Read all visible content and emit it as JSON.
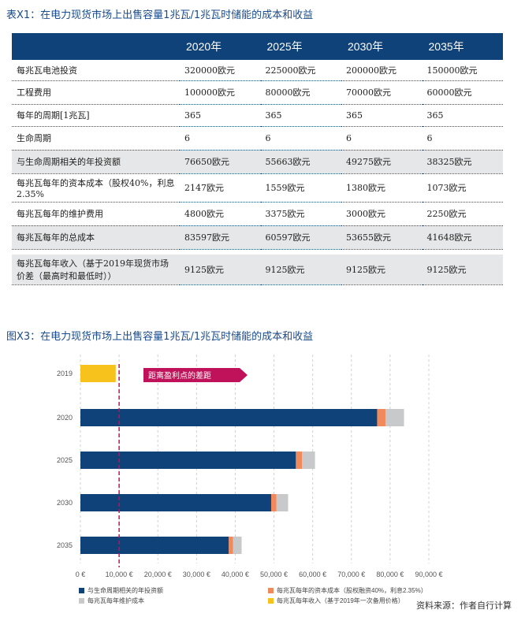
{
  "table": {
    "title": "表X1：在电力现货市场上出售容量1兆瓦/1兆瓦时储能的成本和收益",
    "headers": [
      "",
      "2020年",
      "2025年",
      "2030年",
      "2035年"
    ],
    "rows": [
      {
        "label": "每兆瓦电池投资",
        "values": [
          "320000欧元",
          "225000欧元",
          "200000欧元",
          "150000欧元"
        ],
        "shaded": false
      },
      {
        "label": "工程费用",
        "values": [
          "100000欧元",
          "80000欧元",
          "70000欧元",
          "60000欧元"
        ],
        "shaded": false
      },
      {
        "label": "每年的周期[1兆瓦]",
        "values": [
          "365",
          "365",
          "365",
          "365"
        ],
        "shaded": false
      },
      {
        "label": "生命周期",
        "values": [
          "6",
          "6",
          "6",
          "6"
        ],
        "shaded": false
      },
      {
        "label": "与生命周期相关的年投资额",
        "values": [
          "76650欧元",
          "55663欧元",
          "49275欧元",
          "38325欧元"
        ],
        "shaded": true
      },
      {
        "label": "每兆瓦每年的资本成本（股权40%，利息2.35%",
        "values": [
          "2147欧元",
          "1559欧元",
          "1380欧元",
          "1073欧元"
        ],
        "shaded": false
      },
      {
        "label": "每兆瓦每年的维护费用",
        "values": [
          "4800欧元",
          "3375欧元",
          "3000欧元",
          "2250欧元"
        ],
        "shaded": false
      },
      {
        "label": "每兆瓦每年的总成本",
        "values": [
          "83597欧元",
          "60597欧元",
          "53655欧元",
          "41648欧元"
        ],
        "shaded": true
      },
      {
        "label": "每兆瓦每年收入（基于2019年现货市场价差（最高时和最低时））",
        "values": [
          "9125欧元",
          "9125欧元",
          "9125欧元",
          "9125欧元"
        ],
        "shaded": true,
        "gap_before": true
      }
    ]
  },
  "figure": {
    "title": "图X3：在电力现货市场上出售容量1兆瓦/1兆瓦时储能的成本和收益",
    "source": "资料来源：作者自行计算"
  },
  "chart_data": {
    "type": "bar",
    "orientation": "horizontal",
    "stacked": true,
    "categories": [
      "2019",
      "2020",
      "2025",
      "2030",
      "2035"
    ],
    "series": [
      {
        "name": "与生命周期相关的年投资额",
        "color": "#10427a",
        "values": [
          0,
          76650,
          55663,
          49275,
          38325
        ]
      },
      {
        "name": "每兆瓦每年的资本成本（股权融资40%，利息2.35%）",
        "color": "#f08a5d",
        "values": [
          0,
          2147,
          1559,
          1380,
          1073
        ]
      },
      {
        "name": "每兆瓦每年维护成本",
        "color": "#c8c9cb",
        "values": [
          0,
          4800,
          3375,
          3000,
          2250
        ]
      },
      {
        "name": "每兆瓦每年收入（基于2019年一次备用价格）",
        "color": "#f7c21b",
        "values": [
          9125,
          0,
          0,
          0,
          0
        ]
      }
    ],
    "xlim": [
      0,
      90000
    ],
    "xticks": [
      0,
      10000,
      20000,
      30000,
      40000,
      50000,
      60000,
      70000,
      80000,
      90000
    ],
    "xtick_labels": [
      "0 €",
      "10,000 €",
      "20,000 €",
      "30,000 €",
      "40,000 €",
      "50,000 €",
      "60,000 €",
      "70,000 €",
      "80,000 €",
      "90,000 €"
    ],
    "reference_line": {
      "x": 10000,
      "color": "#c0125a"
    },
    "annotation": {
      "text": "距离盈利点的差距",
      "color": "#c0125a"
    },
    "grid": "vertical dashed",
    "legend_placement": "bottom"
  }
}
